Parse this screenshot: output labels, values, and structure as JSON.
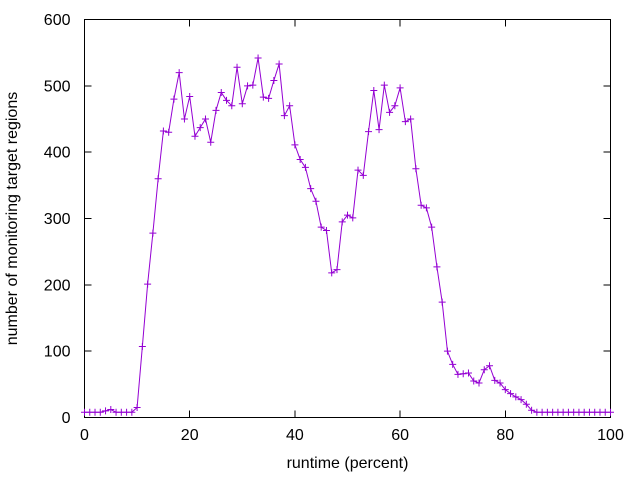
{
  "window": {
    "background": "#ffffff"
  },
  "style": {
    "axis_color": "#000000",
    "text_color": "#000000",
    "line_color": "#9400d3"
  },
  "chart_data": {
    "type": "line",
    "title": "",
    "xlabel": "runtime (percent)",
    "ylabel": "number of monitoring target regions",
    "xlim": [
      0,
      100
    ],
    "ylim": [
      0,
      600
    ],
    "x_ticks": [
      0,
      20,
      40,
      60,
      80,
      100
    ],
    "y_ticks": [
      0,
      100,
      200,
      300,
      400,
      500,
      600
    ],
    "grid": false,
    "legend": "none",
    "marker": "plus",
    "series": [
      {
        "name": "monitoring target regions",
        "color": "#9400d3",
        "x": [
          0,
          1,
          2,
          3,
          4,
          5,
          6,
          7,
          8,
          9,
          10,
          11,
          12,
          13,
          14,
          15,
          16,
          17,
          18,
          19,
          20,
          21,
          22,
          23,
          24,
          25,
          26,
          27,
          28,
          29,
          30,
          31,
          32,
          33,
          34,
          35,
          36,
          37,
          38,
          39,
          40,
          41,
          42,
          43,
          44,
          45,
          46,
          47,
          48,
          49,
          50,
          51,
          52,
          53,
          54,
          55,
          56,
          57,
          58,
          59,
          60,
          61,
          62,
          63,
          64,
          65,
          66,
          67,
          68,
          69,
          70,
          71,
          72,
          73,
          74,
          75,
          76,
          77,
          78,
          79,
          80,
          81,
          82,
          83,
          84,
          85,
          86,
          87,
          88,
          89,
          90,
          91,
          92,
          93,
          94,
          95,
          96,
          97,
          98,
          99,
          100
        ],
        "y": [
          8,
          8,
          8,
          8,
          10,
          12,
          8,
          8,
          8,
          8,
          15,
          107,
          201,
          278,
          360,
          432,
          430,
          480,
          520,
          450,
          484,
          424,
          437,
          450,
          415,
          463,
          490,
          478,
          470,
          528,
          473,
          500,
          501,
          542,
          483,
          481,
          508,
          533,
          455,
          470,
          411,
          389,
          377,
          345,
          326,
          287,
          282,
          218,
          223,
          295,
          305,
          301,
          373,
          365,
          431,
          493,
          434,
          501,
          460,
          470,
          497,
          446,
          450,
          375,
          320,
          316,
          287,
          227,
          174,
          100,
          80,
          65,
          66,
          67,
          55,
          52,
          72,
          78,
          56,
          52,
          42,
          36,
          31,
          27,
          20,
          11,
          8,
          8,
          8,
          8,
          8,
          8,
          8,
          8,
          8,
          8,
          8,
          8,
          8,
          8,
          8
        ]
      }
    ]
  }
}
